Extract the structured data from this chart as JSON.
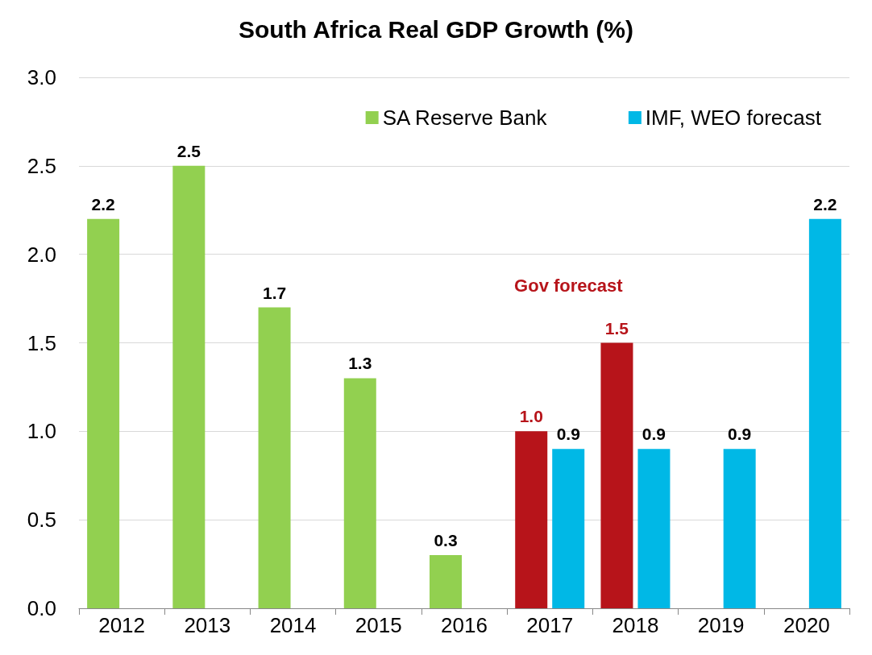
{
  "chart_data": {
    "type": "bar",
    "title": "South Africa Real GDP Growth (%)",
    "categories": [
      "2012",
      "2013",
      "2014",
      "2015",
      "2016",
      "2017",
      "2018",
      "2019",
      "2020"
    ],
    "series": [
      {
        "name": "SA Reserve Bank",
        "color": "#92d050",
        "values": [
          2.2,
          2.5,
          1.7,
          1.3,
          0.3,
          null,
          null,
          null,
          null
        ],
        "value_labels": [
          "2.2",
          "2.5",
          "1.7",
          "1.3",
          "0.3",
          null,
          null,
          null,
          null
        ]
      },
      {
        "name": "Gov forecast",
        "color": "#b7141a",
        "values": [
          null,
          null,
          null,
          null,
          null,
          1.0,
          1.5,
          null,
          null
        ],
        "value_labels": [
          null,
          null,
          null,
          null,
          null,
          "1.0",
          "1.5",
          null,
          null
        ]
      },
      {
        "name": "IMF, WEO forecast",
        "color": "#00b8e6",
        "values": [
          null,
          null,
          null,
          null,
          null,
          0.9,
          0.9,
          0.9,
          2.2
        ],
        "value_labels": [
          null,
          null,
          null,
          null,
          null,
          "0.9",
          "0.9",
          "0.9",
          "2.2"
        ]
      }
    ],
    "ylim": [
      0,
      3
    ],
    "yticks": [
      {
        "value": 0,
        "label": "0.0"
      },
      {
        "value": 0.5,
        "label": "0.5"
      },
      {
        "value": 1,
        "label": "1.0"
      },
      {
        "value": 1.5,
        "label": "1.5"
      },
      {
        "value": 2,
        "label": "2.0"
      },
      {
        "value": 2.5,
        "label": "2.5"
      },
      {
        "value": 3,
        "label": "3.0"
      }
    ],
    "grid": "y",
    "legend": "top right"
  }
}
